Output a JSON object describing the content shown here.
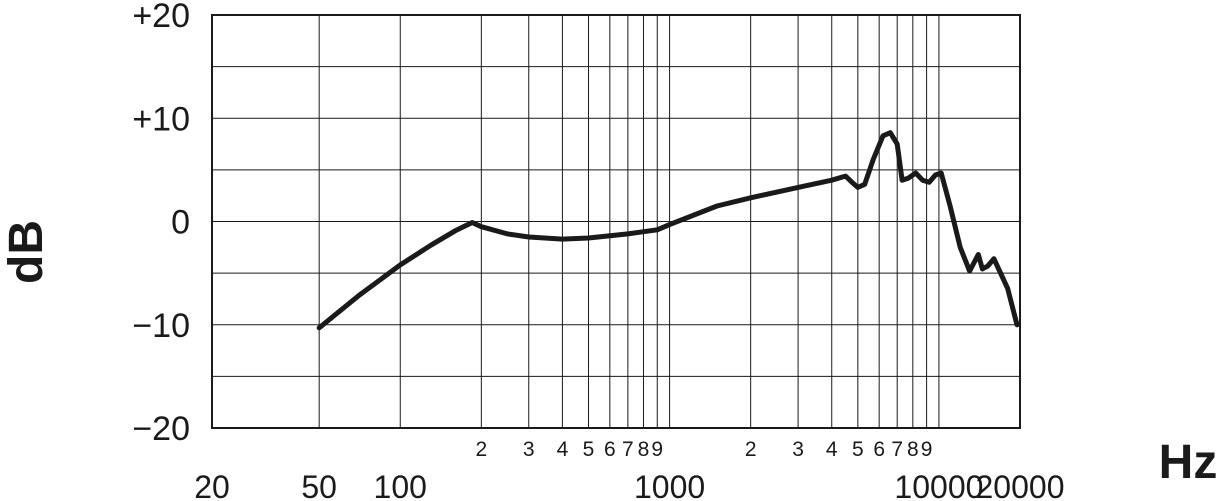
{
  "chart_data": {
    "type": "line",
    "title": "",
    "xlabel": "Hz",
    "ylabel": "dB",
    "x_scale": "log",
    "xlim": [
      20,
      20000
    ],
    "ylim": [
      -20,
      20
    ],
    "grid": true,
    "y_ticks": [
      {
        "value": 20,
        "label": "+20"
      },
      {
        "value": 10,
        "label": "+10"
      },
      {
        "value": 0,
        "label": "0"
      },
      {
        "value": -10,
        "label": "−10"
      },
      {
        "value": -20,
        "label": "−20"
      }
    ],
    "x_major_labels": [
      {
        "value": 20,
        "label": "20"
      },
      {
        "value": 50,
        "label": "50"
      },
      {
        "value": 100,
        "label": "100"
      },
      {
        "value": 1000,
        "label": "1000"
      },
      {
        "value": 10000,
        "label": "10000"
      },
      {
        "value": 20000,
        "label": "20000"
      }
    ],
    "x_minor_labels": [
      {
        "value": 200,
        "label": "2"
      },
      {
        "value": 300,
        "label": "3"
      },
      {
        "value": 400,
        "label": "4"
      },
      {
        "value": 500,
        "label": "5"
      },
      {
        "value": 600,
        "label": "6"
      },
      {
        "value": 700,
        "label": "7"
      },
      {
        "value": 800,
        "label": "8"
      },
      {
        "value": 900,
        "label": "9"
      },
      {
        "value": 2000,
        "label": "2"
      },
      {
        "value": 3000,
        "label": "3"
      },
      {
        "value": 4000,
        "label": "4"
      },
      {
        "value": 5000,
        "label": "5"
      },
      {
        "value": 6000,
        "label": "6"
      },
      {
        "value": 7000,
        "label": "7"
      },
      {
        "value": 8000,
        "label": "8"
      },
      {
        "value": 9000,
        "label": "9"
      }
    ],
    "x_gridlines": [
      50,
      100,
      200,
      300,
      400,
      500,
      600,
      700,
      800,
      900,
      1000,
      2000,
      3000,
      4000,
      5000,
      6000,
      7000,
      8000,
      9000,
      10000
    ],
    "y_gridlines": [
      -15,
      -10,
      -5,
      0,
      5,
      10,
      15
    ],
    "series": [
      {
        "x": [
          50,
          70,
          100,
          130,
          160,
          185,
          200,
          250,
          300,
          400,
          500,
          700,
          900,
          1000,
          1500,
          2000,
          3000,
          4000,
          4500,
          4800,
          5000,
          5300,
          5700,
          6200,
          6600,
          7000,
          7300,
          7700,
          8200,
          8700,
          9200,
          9700,
          10200,
          11000,
          12000,
          13000,
          14000,
          14500,
          15200,
          16000,
          18000,
          19500
        ],
        "y": [
          -10.3,
          -7.2,
          -4.2,
          -2.3,
          -0.9,
          -0.1,
          -0.5,
          -1.2,
          -1.5,
          -1.7,
          -1.6,
          -1.2,
          -0.8,
          -0.3,
          1.5,
          2.3,
          3.3,
          4.0,
          4.4,
          3.7,
          3.3,
          3.6,
          6.0,
          8.3,
          8.6,
          7.5,
          4.0,
          4.2,
          4.7,
          4.0,
          3.8,
          4.5,
          4.7,
          1.5,
          -2.5,
          -4.8,
          -3.2,
          -4.6,
          -4.3,
          -3.6,
          -6.5,
          -10.0
        ]
      }
    ]
  }
}
